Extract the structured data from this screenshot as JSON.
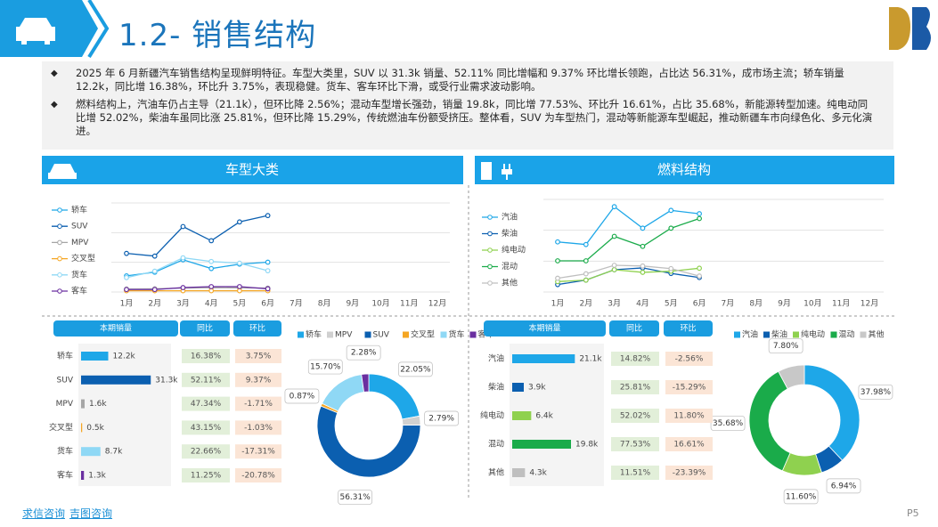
{
  "header": {
    "title": "1.2- 销售结构"
  },
  "bullets": [
    "2025 年 6 月新疆汽车销售结构呈现鲜明特征。车型大类里，SUV 以 31.3k 销量、52.11% 同比增幅和 9.37% 环比增长领跑，占比达 56.31%，成市场主流；轿车销量 12.2k，同比增 16.38%，环比升 3.75%，表现稳健。货车、客车环比下滑，或受行业需求波动影响。",
    "燃料结构上，汽油车仍占主导（21.1k），但环比降 2.56%；混动车型增长强劲，销量 19.8k，同比增 77.53%、环比升 16.61%，占比 35.68%，新能源转型加速。纯电动同比增 52.02%，柴油车虽同比涨 25.81%，但环比降 15.29%，传统燃油车份额受挤压。整体看，SUV 为车型热门，混动等新能源车型崛起，推动新疆车市向绿色化、多元化演进。"
  ],
  "panels": [
    "车型大类",
    "燃料结构"
  ],
  "chart_data": [
    {
      "type": "line",
      "legend": "left",
      "ylim": [
        0,
        35
      ],
      "categories": [
        "1月",
        "2月",
        "3月",
        "4月",
        "5月",
        "6月",
        "7月",
        "8月",
        "9月",
        "10月",
        "11月",
        "12月"
      ],
      "series": [
        {
          "name": "轿车",
          "color": "#1ea7e8",
          "values": [
            6.6,
            8.1,
            13.2,
            9.6,
            11.4,
            12.2,
            null,
            null,
            null,
            null,
            null,
            null
          ]
        },
        {
          "name": "SUV",
          "color": "#0b5fb0",
          "values": [
            15.8,
            14.7,
            26.8,
            21.0,
            28.7,
            31.3,
            null,
            null,
            null,
            null,
            null,
            null
          ]
        },
        {
          "name": "MPV",
          "color": "#a6a6a6",
          "values": [
            1.2,
            1.3,
            1.6,
            1.8,
            1.7,
            1.6,
            null,
            null,
            null,
            null,
            null,
            null
          ]
        },
        {
          "name": "交叉型",
          "color": "#f5a623",
          "values": [
            0.5,
            0.5,
            0.5,
            0.5,
            0.5,
            0.5,
            null,
            null,
            null,
            null,
            null,
            null
          ]
        },
        {
          "name": "货车",
          "color": "#8fd8f5",
          "values": [
            5.9,
            8.5,
            14.0,
            12.5,
            11.8,
            8.7,
            null,
            null,
            null,
            null,
            null,
            null
          ]
        },
        {
          "name": "客车",
          "color": "#6a2fa0",
          "values": [
            1.0,
            1.0,
            1.8,
            2.2,
            2.2,
            1.3,
            null,
            null,
            null,
            null,
            null,
            null
          ]
        }
      ]
    },
    {
      "type": "line",
      "legend": "left",
      "ylim": [
        0,
        24
      ],
      "categories": [
        "1月",
        "2月",
        "3月",
        "4月",
        "5月",
        "6月",
        "7月",
        "8月",
        "9月",
        "10月",
        "11月",
        "12月"
      ],
      "series": [
        {
          "name": "汽油",
          "color": "#1ea7e8",
          "values": [
            13.5,
            12.8,
            23.0,
            17.2,
            22.0,
            21.1,
            null,
            null,
            null,
            null,
            null,
            null
          ]
        },
        {
          "name": "柴油",
          "color": "#0b5fb0",
          "values": [
            2.0,
            3.2,
            6.0,
            6.5,
            5.0,
            3.9,
            null,
            null,
            null,
            null,
            null,
            null
          ]
        },
        {
          "name": "纯电动",
          "color": "#8fd14f",
          "values": [
            2.8,
            3.2,
            6.0,
            5.3,
            5.6,
            6.4,
            null,
            null,
            null,
            null,
            null,
            null
          ]
        },
        {
          "name": "混动",
          "color": "#1aab4a",
          "values": [
            8.4,
            8.4,
            15.0,
            12.3,
            17.2,
            19.8,
            null,
            null,
            null,
            null,
            null,
            null
          ]
        },
        {
          "name": "其他",
          "color": "#bfbfbf",
          "values": [
            3.7,
            4.9,
            7.2,
            7.0,
            6.3,
            4.3,
            null,
            null,
            null,
            null,
            null,
            null
          ]
        }
      ]
    },
    {
      "type": "barh",
      "xlim": [
        0,
        32
      ],
      "categories": [
        "轿车",
        "SUV",
        "MPV",
        "交叉型",
        "货车",
        "客车"
      ],
      "values": [
        12.2,
        31.3,
        1.6,
        0.5,
        8.7,
        1.3
      ],
      "value_labels": [
        "12.2k",
        "31.3k",
        "1.6k",
        "0.5k",
        "8.7k",
        "1.3k"
      ],
      "colors": [
        "#1ea7e8",
        "#0b5fb0",
        "#a6a6a6",
        "#f5a623",
        "#8fd8f5",
        "#6a2fa0"
      ]
    },
    {
      "type": "donut",
      "categories": [
        "轿车",
        "MPV",
        "SUV",
        "交叉型",
        "货车",
        "客车"
      ],
      "values": [
        22.05,
        2.79,
        56.31,
        0.87,
        15.7,
        2.28
      ],
      "value_labels": [
        "22.05%",
        "2.79%",
        "56.31%",
        "0.87%",
        "15.70%",
        "2.28%"
      ],
      "colors": [
        "#1ea7e8",
        "#d0d0d0",
        "#0b5fb0",
        "#f5a623",
        "#8fd8f5",
        "#6a2fa0"
      ]
    },
    {
      "type": "barh",
      "xlim": [
        0,
        24
      ],
      "categories": [
        "汽油",
        "柴油",
        "纯电动",
        "混动",
        "其他"
      ],
      "values": [
        21.1,
        3.9,
        6.4,
        19.8,
        4.3
      ],
      "value_labels": [
        "21.1k",
        "3.9k",
        "6.4k",
        "19.8k",
        "4.3k"
      ],
      "colors": [
        "#1ea7e8",
        "#0b5fb0",
        "#8fd14f",
        "#1aab4a",
        "#bfbfbf"
      ]
    },
    {
      "type": "donut",
      "categories": [
        "汽油",
        "柴油",
        "纯电动",
        "混动",
        "其他"
      ],
      "values": [
        37.98,
        6.94,
        11.6,
        35.68,
        7.8
      ],
      "value_labels": [
        "37.98%",
        "6.94%",
        "11.60%",
        "35.68%",
        "7.80%"
      ],
      "colors": [
        "#1ea7e8",
        "#0b5fb0",
        "#8fd14f",
        "#1aab4a",
        "#c8c8c8"
      ]
    }
  ],
  "tables": [
    {
      "columns": [
        "本期销量",
        "同比",
        "环比"
      ],
      "rows": [
        [
          "16.38%",
          "3.75%"
        ],
        [
          "52.11%",
          "9.37%"
        ],
        [
          "47.34%",
          "-1.71%"
        ],
        [
          "43.15%",
          "-1.03%"
        ],
        [
          "22.66%",
          "-17.31%"
        ],
        [
          "11.25%",
          "-20.78%"
        ]
      ]
    },
    {
      "columns": [
        "本期销量",
        "同比",
        "环比"
      ],
      "rows": [
        [
          "14.82%",
          "-2.56%"
        ],
        [
          "25.81%",
          "-15.29%"
        ],
        [
          "52.02%",
          "11.80%"
        ],
        [
          "77.53%",
          "16.61%"
        ],
        [
          "11.51%",
          "-23.39%"
        ]
      ]
    }
  ],
  "footer": {
    "brands": [
      "求信咨询",
      "吉图咨询"
    ],
    "page": "P5"
  }
}
